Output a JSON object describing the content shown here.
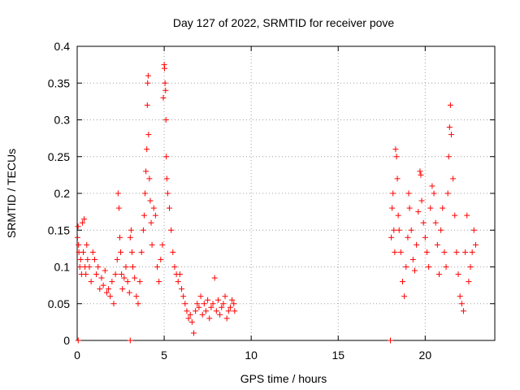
{
  "chart_data": {
    "type": "scatter",
    "title": "Day 127 of 2022, SRMTID for receiver pove",
    "xlabel": "GPS time / hours",
    "ylabel": "SRMTID / TECUs",
    "xlim": [
      0,
      24
    ],
    "ylim": [
      0,
      0.4
    ],
    "xticks": [
      0,
      5,
      10,
      15,
      20
    ],
    "xtick_labels": [
      "0",
      "5",
      "10",
      "15",
      "20"
    ],
    "yticks": [
      0,
      0.05,
      0.1,
      0.15,
      0.2,
      0.25,
      0.3,
      0.35,
      0.4
    ],
    "ytick_labels": [
      "0",
      "0.05",
      "0.1",
      "0.15",
      "0.2",
      "0.25",
      "0.3",
      "0.35",
      "0.4"
    ],
    "grid": true,
    "marker": "+",
    "color": "#ff0000",
    "series": [
      {
        "name": "SRMTID",
        "points": [
          [
            0.02,
            0.14
          ],
          [
            0.05,
            0.155
          ],
          [
            0.08,
            0.13
          ],
          [
            0.1,
            0.12
          ],
          [
            0.15,
            0.1
          ],
          [
            0.2,
            0.11
          ],
          [
            0.25,
            0.09
          ],
          [
            0.3,
            0.16
          ],
          [
            0.35,
            0.12
          ],
          [
            0.4,
            0.165
          ],
          [
            0.45,
            0.1
          ],
          [
            0.5,
            0.09
          ],
          [
            0.55,
            0.13
          ],
          [
            0.6,
            0.11
          ],
          [
            0.7,
            0.1
          ],
          [
            0.8,
            0.08
          ],
          [
            0.9,
            0.12
          ],
          [
            1.0,
            0.11
          ],
          [
            1.1,
            0.09
          ],
          [
            1.2,
            0.1
          ],
          [
            1.3,
            0.07
          ],
          [
            1.4,
            0.085
          ],
          [
            1.5,
            0.075
          ],
          [
            1.6,
            0.095
          ],
          [
            1.7,
            0.065
          ],
          [
            1.8,
            0.07
          ],
          [
            1.9,
            0.06
          ],
          [
            2.0,
            0.08
          ],
          [
            2.1,
            0.05
          ],
          [
            2.2,
            0.09
          ],
          [
            2.3,
            0.11
          ],
          [
            2.35,
            0.2
          ],
          [
            2.4,
            0.18
          ],
          [
            2.45,
            0.14
          ],
          [
            2.5,
            0.12
          ],
          [
            2.55,
            0.09
          ],
          [
            2.6,
            0.07
          ],
          [
            2.7,
            0.085
          ],
          [
            2.8,
            0.1
          ],
          [
            2.9,
            0.08
          ],
          [
            3.0,
            0.065
          ],
          [
            3.05,
            0.14
          ],
          [
            3.1,
            0.15
          ],
          [
            3.15,
            0.12
          ],
          [
            3.2,
            0.1
          ],
          [
            3.3,
            0.085
          ],
          [
            3.4,
            0.06
          ],
          [
            3.5,
            0.05
          ],
          [
            3.6,
            0.08
          ],
          [
            3.7,
            0.12
          ],
          [
            3.8,
            0.15
          ],
          [
            3.85,
            0.17
          ],
          [
            3.9,
            0.2
          ],
          [
            3.95,
            0.23
          ],
          [
            4.0,
            0.26
          ],
          [
            4.03,
            0.32
          ],
          [
            4.05,
            0.35
          ],
          [
            4.08,
            0.36
          ],
          [
            4.1,
            0.28
          ],
          [
            4.15,
            0.22
          ],
          [
            4.2,
            0.19
          ],
          [
            4.25,
            0.16
          ],
          [
            4.3,
            0.13
          ],
          [
            4.4,
            0.18
          ],
          [
            4.5,
            0.17
          ],
          [
            4.6,
            0.1
          ],
          [
            4.7,
            0.08
          ],
          [
            4.8,
            0.11
          ],
          [
            4.9,
            0.13
          ],
          [
            4.95,
            0.33
          ],
          [
            5.0,
            0.375
          ],
          [
            5.02,
            0.37
          ],
          [
            5.05,
            0.35
          ],
          [
            5.08,
            0.34
          ],
          [
            5.1,
            0.3
          ],
          [
            5.12,
            0.25
          ],
          [
            5.15,
            0.22
          ],
          [
            5.2,
            0.2
          ],
          [
            5.3,
            0.18
          ],
          [
            5.4,
            0.15
          ],
          [
            5.5,
            0.12
          ],
          [
            5.6,
            0.1
          ],
          [
            5.7,
            0.09
          ],
          [
            5.8,
            0.08
          ],
          [
            5.9,
            0.09
          ],
          [
            6.0,
            0.07
          ],
          [
            6.1,
            0.06
          ],
          [
            6.2,
            0.05
          ],
          [
            6.3,
            0.04
          ],
          [
            6.4,
            0.03
          ],
          [
            6.5,
            0.035
          ],
          [
            6.6,
            0.025
          ],
          [
            6.7,
            0.01
          ],
          [
            6.8,
            0.04
          ],
          [
            6.9,
            0.05
          ],
          [
            7.0,
            0.045
          ],
          [
            7.1,
            0.06
          ],
          [
            7.2,
            0.035
          ],
          [
            7.3,
            0.05
          ],
          [
            7.4,
            0.04
          ],
          [
            7.5,
            0.055
          ],
          [
            7.6,
            0.03
          ],
          [
            7.7,
            0.045
          ],
          [
            7.8,
            0.05
          ],
          [
            7.9,
            0.085
          ],
          [
            8.0,
            0.04
          ],
          [
            8.1,
            0.055
          ],
          [
            8.2,
            0.035
          ],
          [
            8.3,
            0.045
          ],
          [
            8.4,
            0.05
          ],
          [
            8.5,
            0.06
          ],
          [
            8.6,
            0.03
          ],
          [
            8.7,
            0.04
          ],
          [
            8.8,
            0.045
          ],
          [
            8.9,
            0.055
          ],
          [
            9.0,
            0.05
          ],
          [
            9.05,
            0.04
          ],
          [
            0.06,
            0.0
          ],
          [
            3.05,
            0.0
          ],
          [
            18.0,
            0.0
          ],
          [
            18.05,
            0.14
          ],
          [
            18.1,
            0.18
          ],
          [
            18.15,
            0.2
          ],
          [
            18.2,
            0.15
          ],
          [
            18.25,
            0.12
          ],
          [
            18.3,
            0.26
          ],
          [
            18.35,
            0.25
          ],
          [
            18.4,
            0.22
          ],
          [
            18.45,
            0.17
          ],
          [
            18.5,
            0.15
          ],
          [
            18.6,
            0.12
          ],
          [
            18.7,
            0.08
          ],
          [
            18.8,
            0.06
          ],
          [
            18.9,
            0.1
          ],
          [
            19.0,
            0.14
          ],
          [
            19.05,
            0.2
          ],
          [
            19.1,
            0.18
          ],
          [
            19.2,
            0.15
          ],
          [
            19.3,
            0.11
          ],
          [
            19.4,
            0.095
          ],
          [
            19.5,
            0.13
          ],
          [
            19.6,
            0.175
          ],
          [
            19.7,
            0.23
          ],
          [
            19.75,
            0.225
          ],
          [
            19.8,
            0.19
          ],
          [
            19.9,
            0.16
          ],
          [
            20.0,
            0.14
          ],
          [
            20.1,
            0.12
          ],
          [
            20.2,
            0.1
          ],
          [
            20.3,
            0.18
          ],
          [
            20.4,
            0.21
          ],
          [
            20.5,
            0.2
          ],
          [
            20.6,
            0.16
          ],
          [
            20.7,
            0.13
          ],
          [
            20.8,
            0.09
          ],
          [
            20.9,
            0.15
          ],
          [
            21.0,
            0.18
          ],
          [
            21.1,
            0.12
          ],
          [
            21.2,
            0.1
          ],
          [
            21.3,
            0.2
          ],
          [
            21.35,
            0.25
          ],
          [
            21.4,
            0.29
          ],
          [
            21.45,
            0.32
          ],
          [
            21.5,
            0.28
          ],
          [
            21.6,
            0.22
          ],
          [
            21.7,
            0.17
          ],
          [
            21.8,
            0.12
          ],
          [
            21.9,
            0.09
          ],
          [
            22.0,
            0.06
          ],
          [
            22.1,
            0.05
          ],
          [
            22.2,
            0.04
          ],
          [
            22.3,
            0.12
          ],
          [
            22.4,
            0.17
          ],
          [
            22.5,
            0.08
          ],
          [
            22.6,
            0.1
          ],
          [
            22.7,
            0.12
          ],
          [
            22.8,
            0.15
          ],
          [
            22.9,
            0.13
          ]
        ]
      }
    ]
  }
}
